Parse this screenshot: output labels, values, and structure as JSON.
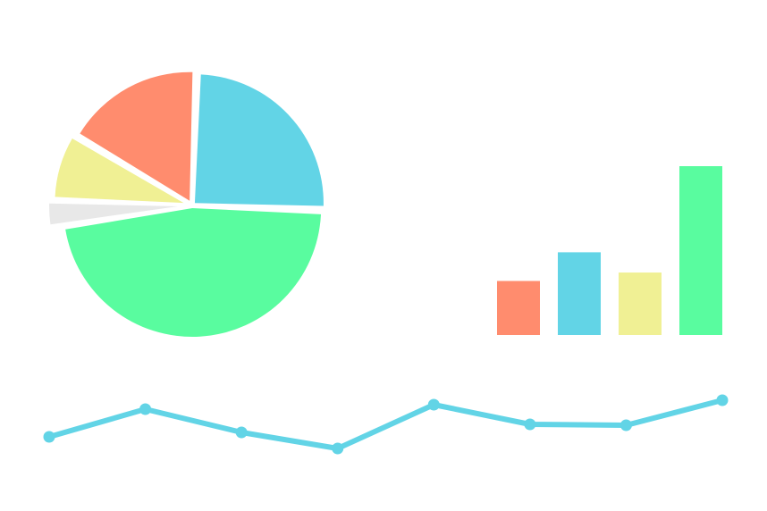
{
  "chart_data": [
    {
      "type": "pie",
      "slices": [
        {
          "value": 25,
          "color": "#62D4E6"
        },
        {
          "value": 47,
          "color": "#59FC9F"
        },
        {
          "value": 3,
          "color": "#E8E8E8"
        },
        {
          "value": 8,
          "color": "#F0F094"
        },
        {
          "value": 17,
          "color": "#FF8C6E"
        }
      ],
      "exploded": true
    },
    {
      "type": "bar",
      "values": [
        32,
        49,
        37,
        100
      ],
      "colors": [
        "#FF8C6E",
        "#62D4E6",
        "#F0F094",
        "#59FC9F"
      ],
      "ylim": [
        0,
        100
      ],
      "grid": false
    },
    {
      "type": "line",
      "x": [
        1,
        2,
        3,
        4,
        5,
        6,
        7,
        8
      ],
      "values": [
        31,
        62,
        36,
        18,
        67,
        45,
        44,
        72
      ],
      "ylim": [
        0,
        100
      ],
      "color": "#62D4E6",
      "markers": true,
      "grid": false
    }
  ]
}
